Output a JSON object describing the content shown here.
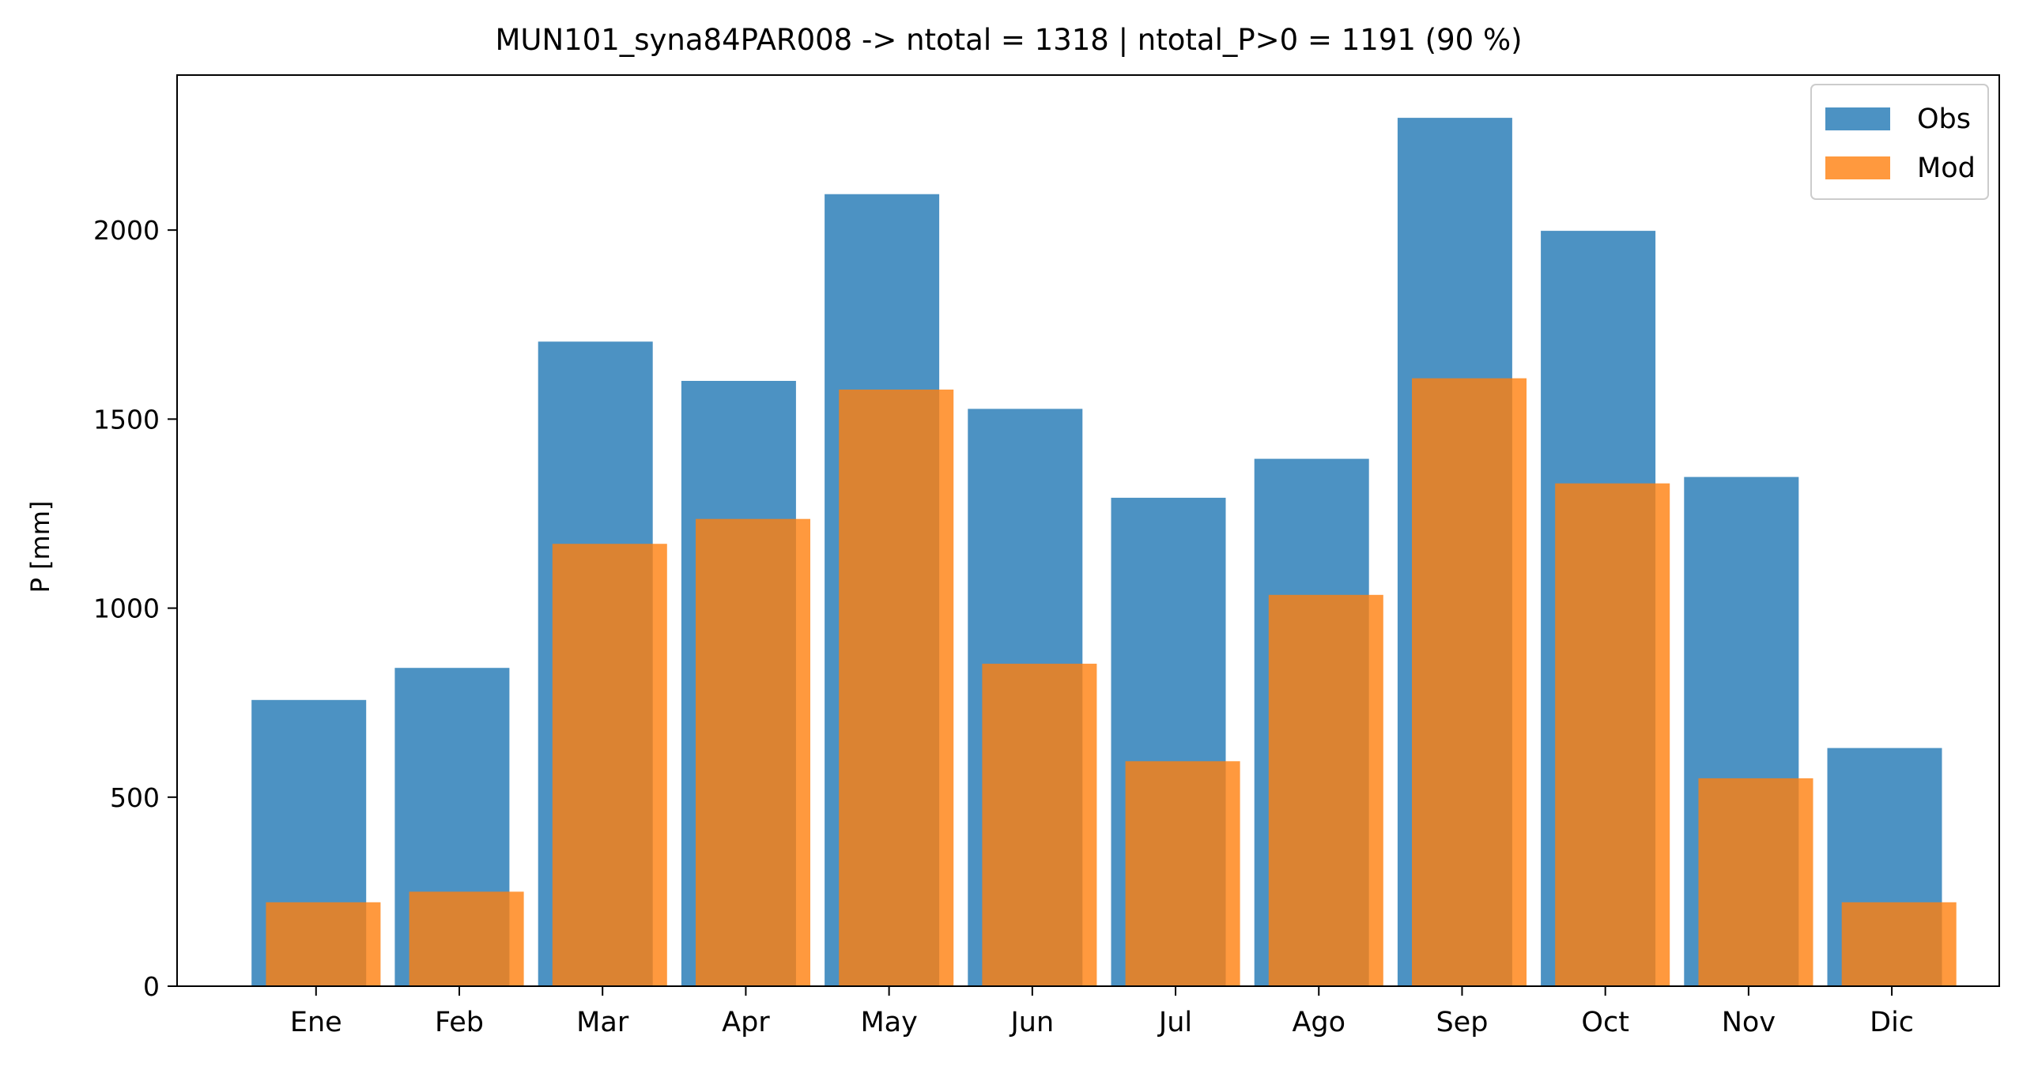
{
  "chart_data": {
    "type": "bar",
    "title": "MUN101_syna84PAR008 -> ntotal = 1318 | ntotal_P>0 = 1191 (90 %)",
    "xlabel": "",
    "ylabel": "P [mm]",
    "ylim": [
      0,
      2410
    ],
    "yticks": [
      0,
      500,
      1000,
      1500,
      2000
    ],
    "categories": [
      "Ene",
      "Feb",
      "Mar",
      "Apr",
      "May",
      "Jun",
      "Jul",
      "Ago",
      "Sep",
      "Oct",
      "Nov",
      "Dic"
    ],
    "series": [
      {
        "name": "Obs",
        "color": "#1f77b4",
        "values": [
          757,
          842,
          1705,
          1601,
          2095,
          1527,
          1292,
          1395,
          2297,
          1998,
          1347,
          630
        ]
      },
      {
        "name": "Mod",
        "color": "#ff7f0e",
        "values": [
          222,
          250,
          1170,
          1236,
          1578,
          853,
          595,
          1035,
          1608,
          1330,
          550,
          222
        ]
      }
    ],
    "grid": false,
    "legend_position": "top-right"
  }
}
